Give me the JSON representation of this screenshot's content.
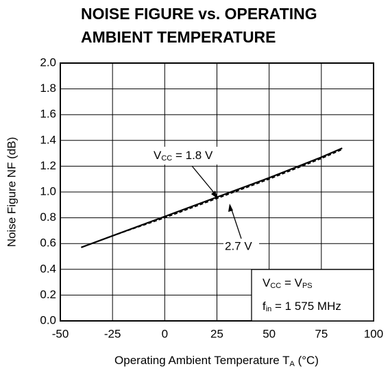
{
  "chart_data": {
    "type": "line",
    "title": [
      "NOISE FIGURE vs. OPERATING",
      "AMBIENT TEMPERATURE"
    ],
    "x_label_parts": [
      "Operating Ambient Temperature  T",
      "A",
      " (°C)"
    ],
    "y_label": "Noise Figure  NF (dB)",
    "x": [
      -40,
      -25,
      0,
      25,
      50,
      75,
      85
    ],
    "series": [
      {
        "name": "1.8 V",
        "color": "#000000",
        "dash": false,
        "values": [
          0.57,
          0.66,
          0.81,
          0.96,
          1.11,
          1.27,
          1.34
        ]
      },
      {
        "name": "2.7 V",
        "color": "#000000",
        "dash": true,
        "values": [
          0.57,
          0.66,
          0.8,
          0.95,
          1.1,
          1.26,
          1.33
        ]
      }
    ],
    "series_label_prefix": [
      "V",
      "CC",
      " = "
    ],
    "box_lines": [
      [
        "V",
        "CC",
        " = V",
        "PS"
      ],
      [
        "f",
        "in",
        " = 1 575 MHz"
      ]
    ],
    "xlim": [
      -50,
      100
    ],
    "xticks": [
      -50,
      -25,
      0,
      25,
      50,
      75,
      100
    ],
    "ylim": [
      0,
      2
    ],
    "yticks": [
      {
        "value": 0,
        "label": "0.0"
      },
      0.2,
      0.4,
      0.6,
      0.8,
      {
        "value": 1,
        "label": "1.0"
      },
      1.2,
      1.4,
      1.6,
      1.8,
      {
        "value": 2,
        "label": "2.0"
      }
    ],
    "grid": true
  }
}
